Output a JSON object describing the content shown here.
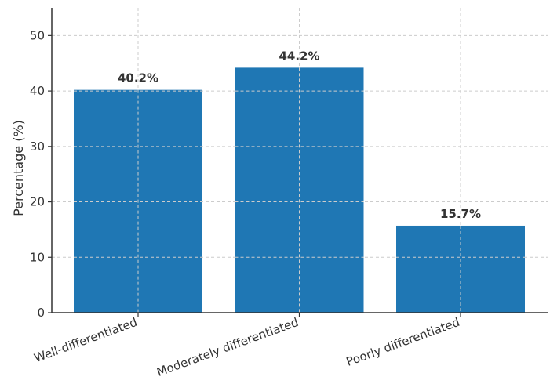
{
  "chart_data": {
    "type": "bar",
    "title": "",
    "xlabel": "",
    "ylabel": "Percentage (%)",
    "categories": [
      "Well-differentiated",
      "Moderately differentiated",
      "Poorly differentiated"
    ],
    "values": [
      40.2,
      44.2,
      15.7
    ],
    "data_labels": [
      "40.2%",
      "44.2%",
      "15.7%"
    ],
    "ylim": [
      0,
      55
    ],
    "yticks": [
      0,
      10,
      20,
      30,
      40,
      50
    ],
    "ytick_labels": [
      "0",
      "10",
      "20",
      "30",
      "40",
      "50"
    ],
    "grid": true,
    "bar_color": "#1f77b4",
    "xtick_rotation": "rotated ~20° counter-clockwise"
  }
}
